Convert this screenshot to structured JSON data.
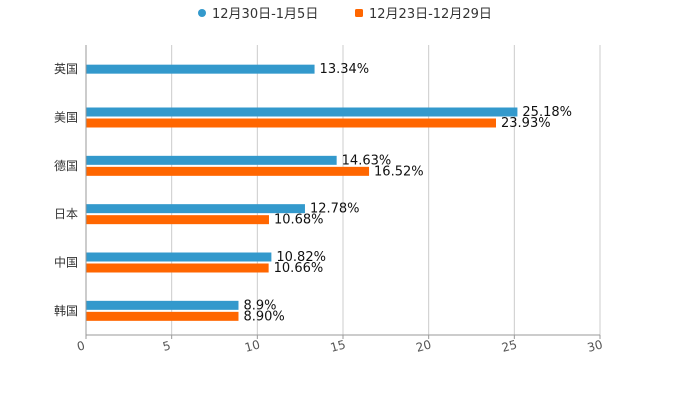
{
  "chart_data": {
    "type": "bar",
    "orientation": "horizontal",
    "title": "",
    "xlabel": "",
    "ylabel": "",
    "xlim": [
      0,
      30
    ],
    "x_ticks": [
      "0",
      "5",
      "10",
      "15",
      "20",
      "25",
      "30"
    ],
    "grid": true,
    "legend_position": "top-center",
    "categories": [
      "英国",
      "美国",
      "德国",
      "日本",
      "中国",
      "韩国"
    ],
    "series": [
      {
        "name": "12月30日-1月5日",
        "color": "#3399cc",
        "values": [
          13.34,
          25.18,
          14.63,
          12.78,
          10.82,
          8.9
        ],
        "labels": [
          "13.34%",
          "25.18%",
          "14.63%",
          "12.78%",
          "10.82%",
          "8.9%"
        ]
      },
      {
        "name": "12月23日-12月29日",
        "color": "#ff6600",
        "values": [
          null,
          23.93,
          16.52,
          10.68,
          10.66,
          8.9
        ],
        "labels": [
          null,
          "23.93%",
          "16.52%",
          "10.68%",
          "10.66%",
          "8.90%"
        ]
      }
    ]
  }
}
